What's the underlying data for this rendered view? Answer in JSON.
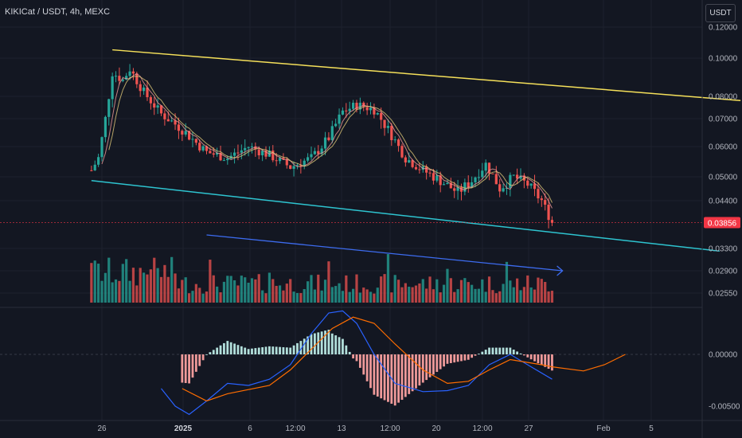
{
  "header": {
    "symbol_title": "KIKICat / USDT, 4h, MEXC",
    "currency_button": "USDT"
  },
  "price_axis": {
    "ticks": [
      "0.12000",
      "0.10000",
      "0.08000",
      "0.07000",
      "0.06000",
      "0.05000",
      "0.04400",
      "0.03300",
      "0.02900",
      "0.02550"
    ],
    "last_price": "0.03856"
  },
  "macd_axis": {
    "ticks": [
      "0.00000",
      "-0.00500"
    ]
  },
  "time_axis": {
    "ticks": [
      "26",
      "2025",
      "6",
      "12:00",
      "13",
      "12:00",
      "20",
      "12:00",
      "27",
      "Feb",
      "5"
    ]
  },
  "colors": {
    "background": "#131722",
    "up": "#26a69a",
    "down": "#ef5350",
    "upper_trendline": "#f5e05a",
    "lower_trendline": "#2ec4d0",
    "volume_trend_arrow": "#3d6cf0",
    "macd_line": "#2962ff",
    "signal_line": "#ff6d00",
    "last_price_label": "#f23645"
  },
  "chart_data": {
    "type": "candlestick",
    "scale": "log",
    "timeframe": "4h",
    "ylim": [
      0.0255,
      0.12
    ],
    "price_path": [
      [
        "2024-12-25T12:00",
        0.052
      ],
      [
        "2024-12-25T20:00",
        0.056
      ],
      [
        "2024-12-26T04:00",
        0.07
      ],
      [
        "2024-12-26T12:00",
        0.092
      ],
      [
        "2024-12-27T00:00",
        0.088
      ],
      [
        "2024-12-27T08:00",
        0.094
      ],
      [
        "2024-12-28T00:00",
        0.082
      ],
      [
        "2024-12-28T20:00",
        0.072
      ],
      [
        "2024-12-29T20:00",
        0.066
      ],
      [
        "2024-12-31T00:00",
        0.058
      ],
      [
        "2025-01-01T00:00",
        0.056
      ],
      [
        "2025-01-02T00:00",
        0.06
      ],
      [
        "2025-01-03T00:00",
        0.057
      ],
      [
        "2025-01-04T00:00",
        0.053
      ],
      [
        "2025-01-05T00:00",
        0.056
      ],
      [
        "2025-01-05T20:00",
        0.063
      ],
      [
        "2025-01-06T12:00",
        0.073
      ],
      [
        "2025-01-07T04:00",
        0.076
      ],
      [
        "2025-01-08T00:00",
        0.074
      ],
      [
        "2025-01-08T20:00",
        0.064
      ],
      [
        "2025-01-09T12:00",
        0.056
      ],
      [
        "2025-01-10T08:00",
        0.052
      ],
      [
        "2025-01-11T04:00",
        0.049
      ],
      [
        "2025-01-12T00:00",
        0.046
      ],
      [
        "2025-01-12T16:00",
        0.049
      ],
      [
        "2025-01-13T08:00",
        0.054
      ],
      [
        "2025-01-14T00:00",
        0.047
      ],
      [
        "2025-01-14T16:00",
        0.05
      ],
      [
        "2025-01-15T08:00",
        0.048
      ],
      [
        "2025-01-16T00:00",
        0.044
      ],
      [
        "2025-01-16T12:00",
        0.03856
      ]
    ],
    "upper_trendline": [
      [
        "2024-12-26T12:00",
        0.105
      ],
      [
        "2025-01-25T12:00",
        0.078
      ]
    ],
    "lower_trendline": [
      [
        "2024-12-25T12:00",
        0.049
      ],
      [
        "2025-01-24T12:00",
        0.0325
      ]
    ],
    "volume_trend_arrow": {
      "from": "2024-12-31T00:00",
      "to": "2025-01-17T00:00"
    },
    "macd": {
      "macd_path": [
        [
          "2024-12-28T20:00",
          -0.0033
        ],
        [
          "2024-12-29T12:00",
          -0.005
        ],
        [
          "2024-12-30T04:00",
          -0.0058
        ],
        [
          "2024-12-31T00:00",
          -0.0045
        ],
        [
          "2025-01-01T00:00",
          -0.0028
        ],
        [
          "2025-01-02T00:00",
          -0.003
        ],
        [
          "2025-01-03T00:00",
          -0.0024
        ],
        [
          "2025-01-04T00:00",
          -0.001
        ],
        [
          "2025-01-05T00:00",
          0.002
        ],
        [
          "2025-01-05T20:00",
          0.004
        ],
        [
          "2025-01-06T12:00",
          0.0042
        ],
        [
          "2025-01-07T04:00",
          0.003
        ],
        [
          "2025-01-08T00:00",
          0.0
        ],
        [
          "2025-01-09T00:00",
          -0.0028
        ],
        [
          "2025-01-10T08:00",
          -0.0036
        ],
        [
          "2025-01-11T12:00",
          -0.0035
        ],
        [
          "2025-01-12T12:00",
          -0.003
        ],
        [
          "2025-01-13T12:00",
          -0.001
        ],
        [
          "2025-01-14T12:00",
          0.0
        ],
        [
          "2025-01-15T12:00",
          -0.0012
        ],
        [
          "2025-01-16T12:00",
          -0.0024
        ]
      ],
      "signal_path": [
        [
          "2024-12-29T20:00",
          -0.0033
        ],
        [
          "2024-12-31T00:00",
          -0.0045
        ],
        [
          "2025-01-01T00:00",
          -0.0038
        ],
        [
          "2025-01-03T00:00",
          -0.003
        ],
        [
          "2025-01-04T00:00",
          -0.0015
        ],
        [
          "2025-01-05T00:00",
          0.0005
        ],
        [
          "2025-01-06T00:00",
          0.0025
        ],
        [
          "2025-01-07T00:00",
          0.0036
        ],
        [
          "2025-01-08T00:00",
          0.003
        ],
        [
          "2025-01-09T00:00",
          0.001
        ],
        [
          "2025-01-10T08:00",
          -0.0015
        ],
        [
          "2025-01-11T12:00",
          -0.0028
        ],
        [
          "2025-01-12T12:00",
          -0.0026
        ],
        [
          "2025-01-13T12:00",
          -0.0015
        ],
        [
          "2025-01-14T12:00",
          -0.0005
        ],
        [
          "2025-01-16T00:00",
          -0.001
        ],
        [
          "2025-01-16T12:00",
          -0.0012
        ],
        [
          "2025-01-18T00:00",
          -0.0016
        ],
        [
          "2025-01-19T00:00",
          -0.001
        ],
        [
          "2025-01-20T00:00",
          0.0
        ]
      ]
    }
  }
}
